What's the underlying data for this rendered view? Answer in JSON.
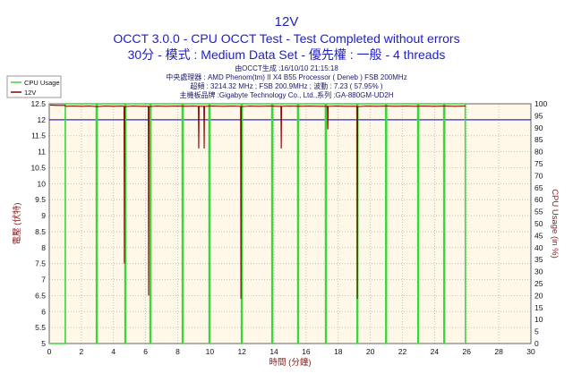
{
  "colors": {
    "title": "#2020c8",
    "info_text": "#1a1a66",
    "axis_label": "#8b1a1a",
    "tick_text": "#111111",
    "plot_background": "#fff7e8",
    "grid": "#b5b5b5",
    "frame": "#666666"
  },
  "chart_data": {
    "type": "line",
    "title": "12V",
    "subtitle_lines": [
      "OCCT 3.0.0 - CPU OCCT Test - Test Completed without errors",
      "30分 - 模式 : Medium Data Set - 優先權 : 一般 - 4 threads"
    ],
    "info_lines": [
      "由OCCT生成 :16/10/10 21:15:18",
      "中央處理器 : AMD Phenom(tm) II X4 B55 Processor ( Deneb ) FSB 200MHz",
      "超頻 : 3214.32 MHz ; FSB 200.9MHz ; 波動 : 7.23 ( 57.95% )",
      "主機板品牌 :Gigabyte Technology Co., Ltd.,系列 :GA-880GM-UD2H"
    ],
    "xlabel": "時間 (分鐘)",
    "ylabel": "電壓 (伏特)",
    "y2label": "CPU Usage (in %)",
    "xlim": [
      0,
      30
    ],
    "ylim": [
      5,
      12.5
    ],
    "y2lim": [
      0,
      100
    ],
    "xticks": [
      0,
      2,
      4,
      6,
      8,
      10,
      12,
      14,
      16,
      18,
      20,
      22,
      24,
      26,
      28,
      30
    ],
    "yticks": [
      5,
      5.5,
      6,
      6.5,
      7,
      7.5,
      8,
      8.5,
      9,
      9.5,
      10,
      10.5,
      11,
      11.5,
      12,
      12.5
    ],
    "y2ticks": [
      0,
      5,
      10,
      15,
      20,
      25,
      30,
      35,
      40,
      45,
      50,
      55,
      60,
      65,
      70,
      75,
      80,
      85,
      90,
      95,
      100
    ],
    "grid": true,
    "legend_position": "top-left",
    "reference_line": {
      "y": 12,
      "color": "#2a2ad6"
    },
    "series": [
      {
        "name": "CPU Usage",
        "y_axis": "right",
        "color": "#3ad63a",
        "points": [
          [
            0,
            0
          ],
          [
            1.0,
            0
          ],
          [
            1.0,
            100
          ],
          [
            2.93,
            100
          ],
          [
            2.94,
            0
          ],
          [
            2.98,
            0
          ],
          [
            2.99,
            100
          ],
          [
            4.71,
            100
          ],
          [
            4.72,
            0
          ],
          [
            4.76,
            0
          ],
          [
            4.77,
            100
          ],
          [
            6.27,
            100
          ],
          [
            6.28,
            0
          ],
          [
            6.32,
            0
          ],
          [
            6.33,
            100
          ],
          [
            8.28,
            100
          ],
          [
            8.29,
            0
          ],
          [
            8.33,
            0
          ],
          [
            8.34,
            100
          ],
          [
            9.95,
            100
          ],
          [
            9.96,
            0
          ],
          [
            10.0,
            0
          ],
          [
            10.01,
            100
          ],
          [
            11.96,
            100
          ],
          [
            11.97,
            0
          ],
          [
            12.01,
            0
          ],
          [
            12.02,
            100
          ],
          [
            13.86,
            100
          ],
          [
            13.87,
            0
          ],
          [
            13.91,
            0
          ],
          [
            13.92,
            100
          ],
          [
            15.47,
            100
          ],
          [
            15.48,
            0
          ],
          [
            15.52,
            0
          ],
          [
            15.53,
            100
          ],
          [
            17.2,
            100
          ],
          [
            17.21,
            0
          ],
          [
            17.25,
            0
          ],
          [
            17.26,
            100
          ],
          [
            19.16,
            100
          ],
          [
            19.17,
            0
          ],
          [
            19.21,
            0
          ],
          [
            19.22,
            100
          ],
          [
            20.95,
            100
          ],
          [
            20.96,
            0
          ],
          [
            21.0,
            0
          ],
          [
            21.01,
            100
          ],
          [
            22.95,
            100
          ],
          [
            22.96,
            0
          ],
          [
            23.0,
            0
          ],
          [
            23.01,
            100
          ],
          [
            24.57,
            100
          ],
          [
            24.58,
            0
          ],
          [
            24.62,
            0
          ],
          [
            24.63,
            100
          ],
          [
            25.91,
            100
          ],
          [
            25.92,
            0
          ],
          [
            25.95,
            0
          ]
        ]
      },
      {
        "name": "12V",
        "y_axis": "left",
        "color": "#8b0000",
        "points": [
          [
            0.05,
            12.46
          ],
          [
            0.5,
            12.45
          ],
          [
            0.95,
            12.45
          ],
          [
            1.05,
            12.42
          ],
          [
            1.5,
            12.43
          ],
          [
            2.0,
            12.42
          ],
          [
            2.5,
            12.43
          ],
          [
            3.0,
            12.41
          ],
          [
            3.5,
            12.43
          ],
          [
            4.0,
            12.42
          ],
          [
            4.5,
            12.43
          ],
          [
            4.66,
            12.42
          ],
          [
            4.68,
            7.5
          ],
          [
            4.7,
            12.41
          ],
          [
            5.2,
            12.43
          ],
          [
            5.7,
            12.42
          ],
          [
            6.17,
            12.42
          ],
          [
            6.19,
            6.5
          ],
          [
            6.21,
            12.41
          ],
          [
            6.7,
            12.43
          ],
          [
            7.3,
            12.42
          ],
          [
            7.9,
            12.43
          ],
          [
            8.5,
            12.42
          ],
          [
            9.0,
            12.43
          ],
          [
            9.29,
            12.42
          ],
          [
            9.31,
            11.1
          ],
          [
            9.33,
            12.42
          ],
          [
            9.63,
            12.42
          ],
          [
            9.65,
            11.1
          ],
          [
            9.67,
            12.42
          ],
          [
            10.2,
            12.43
          ],
          [
            10.8,
            12.42
          ],
          [
            11.4,
            12.43
          ],
          [
            11.92,
            12.42
          ],
          [
            11.94,
            6.4
          ],
          [
            11.96,
            12.41
          ],
          [
            12.5,
            12.43
          ],
          [
            13.1,
            12.42
          ],
          [
            13.7,
            12.43
          ],
          [
            14.2,
            12.42
          ],
          [
            14.43,
            12.42
          ],
          [
            14.45,
            11.1
          ],
          [
            14.47,
            12.42
          ],
          [
            15.0,
            12.43
          ],
          [
            15.6,
            12.42
          ],
          [
            16.2,
            12.43
          ],
          [
            16.8,
            12.42
          ],
          [
            17.33,
            12.42
          ],
          [
            17.35,
            11.7
          ],
          [
            17.37,
            12.42
          ],
          [
            17.9,
            12.43
          ],
          [
            18.5,
            12.42
          ],
          [
            19.17,
            12.42
          ],
          [
            19.19,
            6.4
          ],
          [
            19.21,
            12.41
          ],
          [
            19.8,
            12.43
          ],
          [
            20.4,
            12.42
          ],
          [
            21.0,
            12.43
          ],
          [
            21.6,
            12.42
          ],
          [
            22.2,
            12.43
          ],
          [
            22.8,
            12.42
          ],
          [
            23.4,
            12.43
          ],
          [
            24.0,
            12.42
          ],
          [
            24.6,
            12.43
          ],
          [
            25.2,
            12.42
          ],
          [
            25.93,
            12.43
          ]
        ]
      }
    ]
  }
}
